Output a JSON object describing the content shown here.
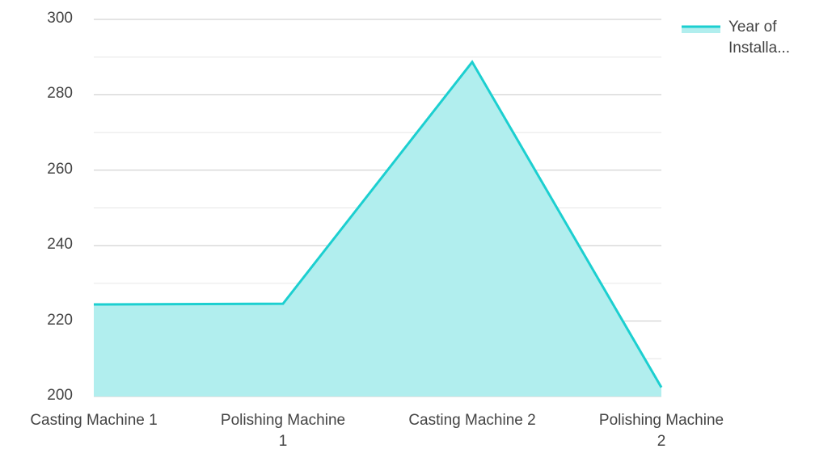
{
  "chart_data": {
    "type": "area",
    "categories": [
      "Casting Machine 1",
      "Polishing Machine 1",
      "Casting Machine 2",
      "Polishing Machine 2"
    ],
    "series": [
      {
        "name": "Year of Installa...",
        "color": "#1ccfd0",
        "fill": "#b1eeee",
        "values": [
          224.4,
          224.6,
          288.7,
          202.4
        ]
      }
    ],
    "ylim": [
      200,
      300
    ],
    "yticks": [
      200,
      220,
      240,
      260,
      280,
      300
    ],
    "minor_yticks": [
      210,
      230,
      250,
      270,
      290
    ],
    "grid": true,
    "legend": "top-right"
  }
}
